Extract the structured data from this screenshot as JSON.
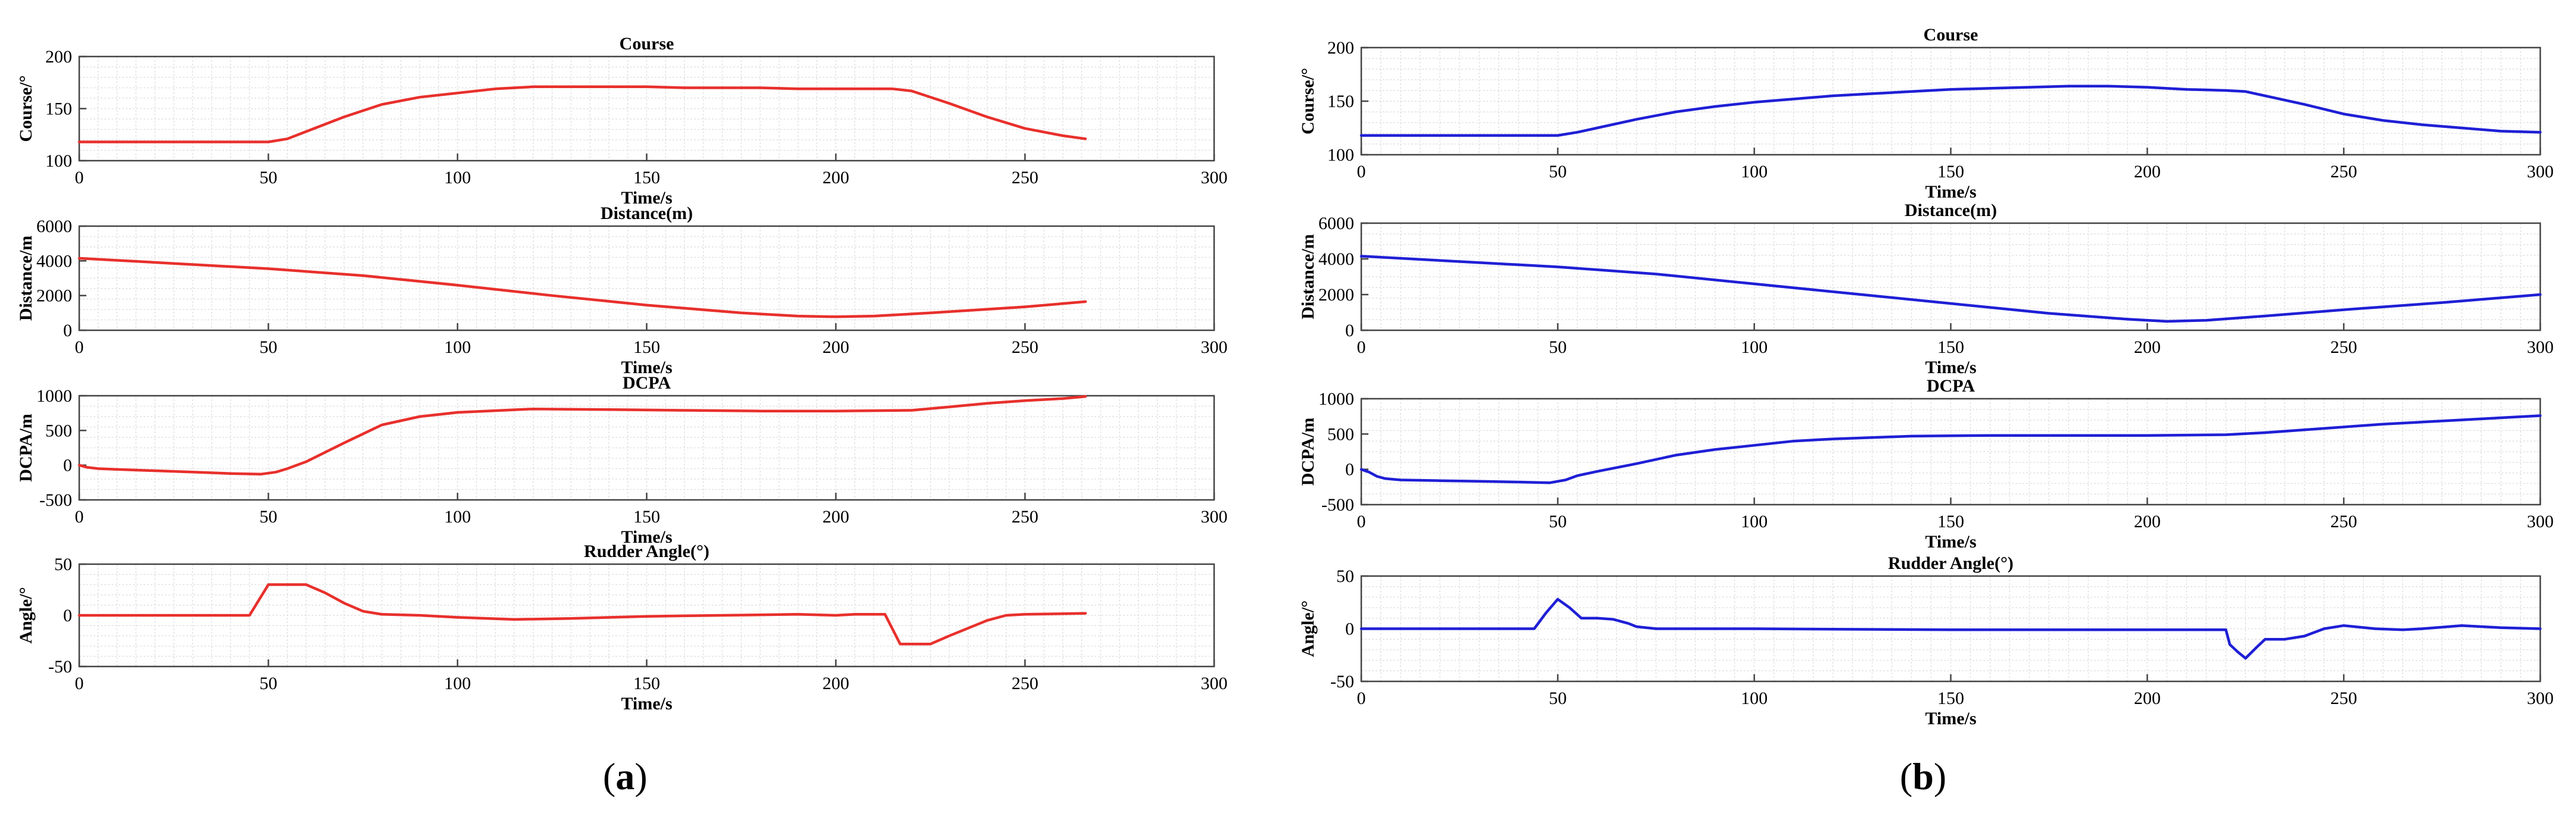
{
  "panels": [
    {
      "label_open": "(",
      "label_letter": "a",
      "label_close": ")"
    },
    {
      "label_open": "(",
      "label_letter": "b",
      "label_close": ")"
    }
  ],
  "chart_data": [
    {
      "type": "line",
      "panel": "a",
      "title": "Course",
      "xlabel": "Time/s",
      "ylabel": "Course/°",
      "xlim": [
        0,
        300
      ],
      "ylim": [
        100,
        200
      ],
      "xticks": [
        0,
        50,
        100,
        150,
        200,
        250,
        300
      ],
      "yticks": [
        100,
        150,
        200
      ],
      "grid": true,
      "color": "#e8302c",
      "series": [
        {
          "x": [
            0,
            45,
            50,
            55,
            60,
            70,
            80,
            90,
            100,
            110,
            120,
            130,
            140,
            150,
            160,
            170,
            180,
            190,
            200,
            210,
            215,
            220,
            230,
            240,
            250,
            260,
            266
          ],
          "y": [
            118,
            118,
            118,
            121,
            128,
            142,
            154,
            161,
            165,
            169,
            171,
            171,
            171,
            171,
            170,
            170,
            170,
            169,
            169,
            169,
            169,
            167,
            155,
            142,
            131,
            124,
            121
          ]
        }
      ]
    },
    {
      "type": "line",
      "panel": "a",
      "title": "Distance(m)",
      "xlabel": "Time/s",
      "ylabel": "Distance/m",
      "xlim": [
        0,
        300
      ],
      "ylim": [
        0,
        6000
      ],
      "xticks": [
        0,
        50,
        100,
        150,
        200,
        250,
        300
      ],
      "yticks": [
        0,
        2000,
        4000,
        6000
      ],
      "grid": true,
      "color": "#e8302c",
      "series": [
        {
          "x": [
            0,
            25,
            50,
            75,
            100,
            125,
            150,
            175,
            190,
            200,
            210,
            225,
            250,
            266
          ],
          "y": [
            4150,
            3850,
            3550,
            3150,
            2600,
            2000,
            1450,
            1000,
            820,
            780,
            820,
            1000,
            1350,
            1650
          ]
        }
      ]
    },
    {
      "type": "line",
      "panel": "a",
      "title": "DCPA",
      "xlabel": "Time/s",
      "ylabel": "DCPA/m",
      "xlim": [
        0,
        300
      ],
      "ylim": [
        -500,
        1000
      ],
      "xticks": [
        0,
        50,
        100,
        150,
        200,
        250,
        300
      ],
      "yticks": [
        -500,
        0,
        500,
        1000
      ],
      "grid": true,
      "color": "#e8302c",
      "series": [
        {
          "x": [
            0,
            2,
            5,
            10,
            20,
            30,
            40,
            48,
            52,
            55,
            60,
            70,
            80,
            90,
            100,
            120,
            140,
            160,
            180,
            200,
            220,
            230,
            240,
            250,
            260,
            266
          ],
          "y": [
            0,
            -30,
            -50,
            -60,
            -80,
            -100,
            -120,
            -130,
            -100,
            -50,
            50,
            320,
            580,
            700,
            760,
            810,
            800,
            790,
            780,
            780,
            790,
            840,
            890,
            930,
            960,
            990
          ]
        }
      ]
    },
    {
      "type": "line",
      "panel": "a",
      "title": "Rudder Angle(°)",
      "xlabel": "Time/s",
      "ylabel": "Angle/°",
      "xlim": [
        0,
        300
      ],
      "ylim": [
        -50,
        50
      ],
      "xticks": [
        0,
        50,
        100,
        150,
        200,
        250,
        300
      ],
      "yticks": [
        -50,
        0,
        50
      ],
      "grid": true,
      "color": "#e8302c",
      "series": [
        {
          "x": [
            0,
            45,
            50,
            60,
            65,
            70,
            75,
            80,
            90,
            100,
            115,
            130,
            150,
            170,
            190,
            200,
            205,
            213,
            217,
            225,
            230,
            240,
            245,
            250,
            266
          ],
          "y": [
            0,
            0,
            30,
            30,
            22,
            12,
            4,
            1,
            0,
            -2,
            -4,
            -3,
            -1,
            0,
            1,
            0,
            1,
            1,
            -28,
            -28,
            -20,
            -5,
            0,
            1,
            2
          ]
        }
      ]
    },
    {
      "type": "line",
      "panel": "b",
      "title": "Course",
      "xlabel": "Time/s",
      "ylabel": "Course/°",
      "xlim": [
        0,
        300
      ],
      "ylim": [
        100,
        200
      ],
      "xticks": [
        0,
        50,
        100,
        150,
        200,
        250,
        300
      ],
      "yticks": [
        100,
        150,
        200
      ],
      "grid": true,
      "color": "#1f1fd6",
      "series": [
        {
          "x": [
            0,
            45,
            50,
            55,
            60,
            70,
            80,
            90,
            100,
            110,
            120,
            130,
            140,
            150,
            160,
            170,
            180,
            190,
            200,
            210,
            220,
            225,
            230,
            240,
            250,
            260,
            270,
            280,
            290,
            300
          ],
          "y": [
            118,
            118,
            118,
            121,
            125,
            133,
            140,
            145,
            149,
            152,
            155,
            157,
            159,
            161,
            162,
            163,
            164,
            164,
            163,
            161,
            160,
            159,
            155,
            147,
            138,
            132,
            128,
            125,
            122,
            121
          ]
        }
      ]
    },
    {
      "type": "line",
      "panel": "b",
      "title": "Distance(m)",
      "xlabel": "Time/s",
      "ylabel": "Distance/m",
      "xlim": [
        0,
        300
      ],
      "ylim": [
        0,
        6000
      ],
      "xticks": [
        0,
        50,
        100,
        150,
        200,
        250,
        300
      ],
      "yticks": [
        0,
        2000,
        4000,
        6000
      ],
      "grid": true,
      "color": "#1f1fd6",
      "series": [
        {
          "x": [
            0,
            25,
            50,
            75,
            100,
            125,
            150,
            175,
            195,
            205,
            215,
            230,
            250,
            275,
            300
          ],
          "y": [
            4150,
            3850,
            3550,
            3150,
            2600,
            2050,
            1500,
            950,
            620,
            500,
            560,
            800,
            1150,
            1550,
            2000
          ]
        }
      ]
    },
    {
      "type": "line",
      "panel": "b",
      "title": "DCPA",
      "xlabel": "Time/s",
      "ylabel": "DCPA/m",
      "xlim": [
        0,
        300
      ],
      "ylim": [
        -500,
        1000
      ],
      "xticks": [
        0,
        50,
        100,
        150,
        200,
        250,
        300
      ],
      "yticks": [
        -500,
        0,
        500,
        1000
      ],
      "grid": true,
      "color": "#1f1fd6",
      "series": [
        {
          "x": [
            0,
            2,
            4,
            6,
            10,
            20,
            30,
            40,
            48,
            52,
            55,
            60,
            70,
            80,
            90,
            100,
            110,
            120,
            140,
            160,
            180,
            200,
            220,
            230,
            240,
            250,
            260,
            280,
            300
          ],
          "y": [
            0,
            -40,
            -100,
            -130,
            -150,
            -160,
            -170,
            -180,
            -190,
            -150,
            -90,
            -30,
            80,
            200,
            280,
            340,
            400,
            430,
            470,
            480,
            480,
            480,
            490,
            520,
            560,
            600,
            640,
            700,
            760
          ]
        }
      ]
    },
    {
      "type": "line",
      "panel": "b",
      "title": "Rudder Angle(°)",
      "xlabel": "Time/s",
      "ylabel": "Angle/°",
      "xlim": [
        0,
        300
      ],
      "ylim": [
        -50,
        50
      ],
      "xticks": [
        0,
        50,
        100,
        150,
        200,
        250,
        300
      ],
      "yticks": [
        -50,
        0,
        50
      ],
      "grid": true,
      "color": "#1f1fd6",
      "series": [
        {
          "x": [
            0,
            44,
            47,
            50,
            53,
            56,
            60,
            64,
            68,
            70,
            75,
            80,
            100,
            150,
            200,
            220,
            221,
            223,
            225,
            228,
            230,
            235,
            240,
            245,
            250,
            258,
            265,
            270,
            280,
            290,
            300
          ],
          "y": [
            0,
            0,
            15,
            28,
            20,
            10,
            10,
            9,
            5,
            2,
            0,
            0,
            0,
            -1,
            -1,
            -1,
            -15,
            -22,
            -28,
            -17,
            -10,
            -10,
            -7,
            0,
            3,
            0,
            -1,
            0,
            3,
            1,
            0
          ]
        }
      ]
    }
  ]
}
